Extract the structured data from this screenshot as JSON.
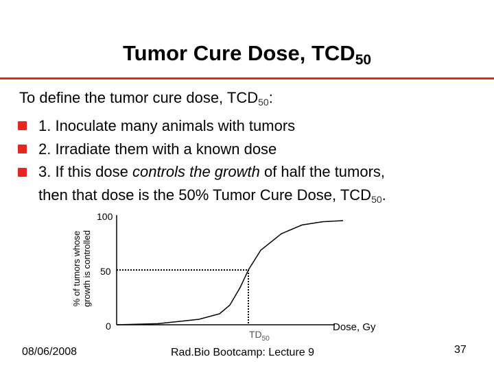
{
  "slide": {
    "title": "Tumor Cure Dose, TCD",
    "title_subscript": "50",
    "intro": "To define the tumor cure dose, TCD",
    "intro_subscript": "50",
    "intro_suffix": ":",
    "bullets": [
      "1. Inoculate many animals with tumors",
      "2. Irradiate them with a known dose",
      "3. If this dose "
    ],
    "bullet3_italic": "controls the growth",
    "bullet3_suffix": " of half the tumors,",
    "continuation": "then that dose is the 50% Tumor Cure Dose, TCD",
    "continuation_subscript": "50",
    "continuation_suffix": ".",
    "accent_color": "#e8251f",
    "bullet_icon": "red-square-bullet-icon"
  },
  "chart_data": {
    "type": "line",
    "ylabel_line1": "% of tumors whose",
    "ylabel_line2": "growth is controlled",
    "xlabel": "Dose, Gy",
    "y_ticks": [
      "100",
      "50",
      "0"
    ],
    "marker_label": "TD",
    "marker_label_subscript": "50",
    "ylim": [
      0,
      100
    ],
    "series": [
      {
        "x": [
          0,
          20,
          40,
          50,
          55,
          60,
          64,
          70,
          80,
          90,
          100,
          110
        ],
        "values": [
          0,
          1,
          5,
          10,
          18,
          34,
          50,
          68,
          83,
          91,
          94,
          95
        ]
      }
    ],
    "td50_x": 64,
    "reference_level": 50,
    "colors": {
      "curve": "#000000",
      "axes": "#000000",
      "guide": "#000000"
    }
  },
  "footer": {
    "date": "08/06/2008",
    "course": "Rad.Bio Bootcamp: Lecture 9",
    "page": "37"
  }
}
